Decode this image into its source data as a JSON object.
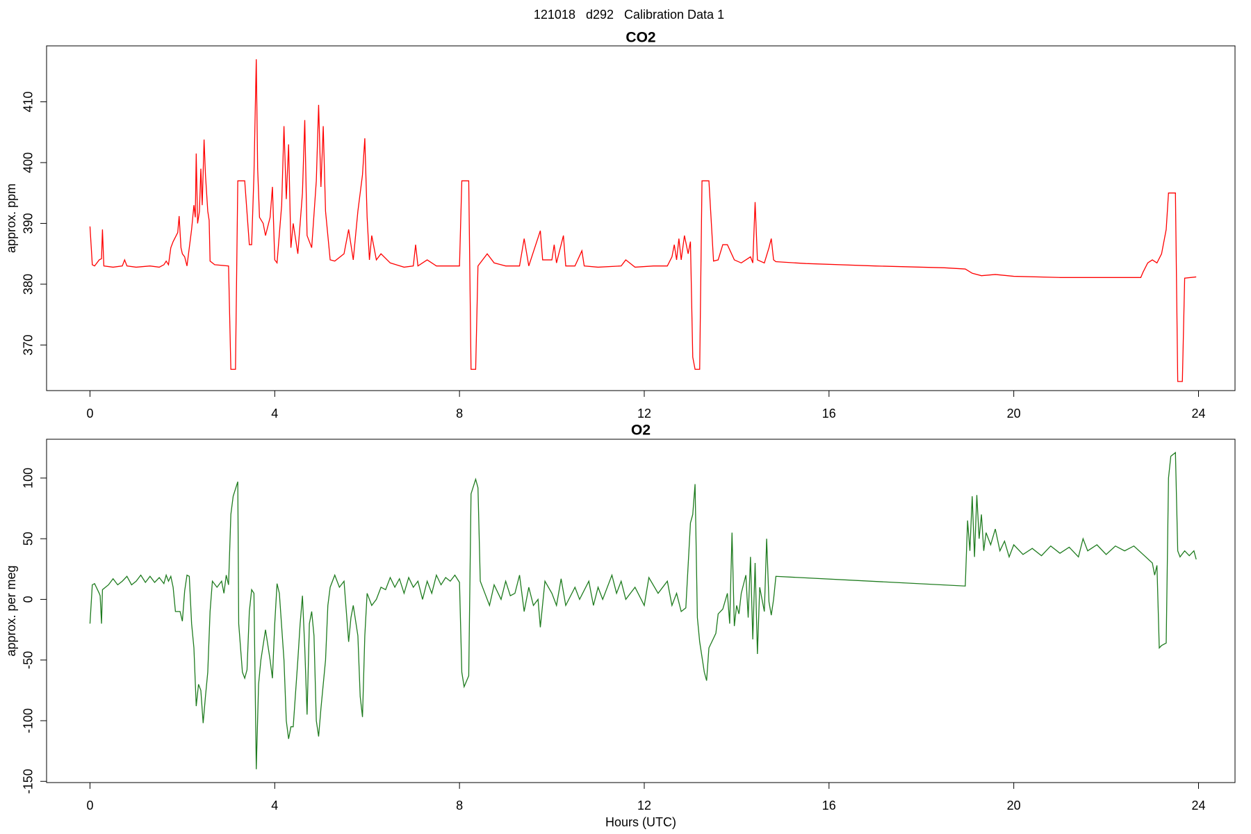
{
  "title": "121018   d292   Calibration Data 1",
  "chart_data": [
    {
      "type": "line",
      "title": "CO2",
      "ylabel": "approx. ppm",
      "color": "#ff0000",
      "xlim": [
        -0.94,
        24.79
      ],
      "ylim": [
        362.5,
        419.2
      ],
      "xticks": [
        0,
        4,
        8,
        12,
        16,
        20,
        24
      ],
      "yticks": [
        370,
        380,
        390,
        400,
        410
      ],
      "x": [
        0.0,
        0.05,
        0.1,
        0.2,
        0.25,
        0.27,
        0.3,
        0.5,
        0.7,
        0.75,
        0.8,
        1.0,
        1.3,
        1.5,
        1.6,
        1.65,
        1.7,
        1.75,
        1.8,
        1.9,
        1.93,
        1.97,
        2.0,
        2.05,
        2.1,
        2.2,
        2.25,
        2.28,
        2.3,
        2.33,
        2.37,
        2.4,
        2.43,
        2.47,
        2.5,
        2.55,
        2.58,
        2.6,
        2.7,
        3.0,
        3.05,
        3.15,
        3.2,
        3.35,
        3.45,
        3.5,
        3.55,
        3.6,
        3.63,
        3.67,
        3.75,
        3.8,
        3.9,
        3.95,
        4.0,
        4.05,
        4.15,
        4.2,
        4.25,
        4.3,
        4.35,
        4.4,
        4.5,
        4.6,
        4.65,
        4.7,
        4.8,
        4.9,
        4.95,
        5.0,
        5.05,
        5.1,
        5.2,
        5.3,
        5.5,
        5.6,
        5.7,
        5.8,
        5.9,
        5.95,
        6.0,
        6.05,
        6.1,
        6.2,
        6.3,
        6.5,
        6.8,
        7.0,
        7.05,
        7.1,
        7.3,
        7.5,
        8.0,
        8.05,
        8.2,
        8.25,
        8.35,
        8.4,
        8.6,
        8.75,
        9.0,
        9.3,
        9.4,
        9.5,
        9.75,
        9.8,
        10.0,
        10.05,
        10.1,
        10.25,
        10.3,
        10.5,
        10.65,
        10.7,
        11.0,
        11.5,
        11.6,
        11.8,
        12.2,
        12.5,
        12.6,
        12.65,
        12.7,
        12.75,
        12.8,
        12.87,
        12.95,
        13.0,
        13.05,
        13.1,
        13.2,
        13.25,
        13.4,
        13.5,
        13.6,
        13.7,
        13.8,
        13.95,
        14.1,
        14.3,
        14.35,
        14.4,
        14.45,
        14.6,
        14.7,
        14.75,
        14.8,
        14.85,
        15.5,
        17,
        18.5,
        18.95,
        19.1,
        19.3,
        19.6,
        20,
        21,
        22.0,
        22.75,
        22.8,
        22.9,
        23.0,
        23.1,
        23.2,
        23.3,
        23.35,
        23.5,
        23.55,
        23.65,
        23.7,
        23.95
      ],
      "values": [
        389.5,
        383.2,
        383,
        384,
        384.2,
        389,
        383,
        382.8,
        383,
        384,
        383,
        382.8,
        383,
        382.8,
        383.2,
        383.8,
        383.2,
        386,
        387,
        388.5,
        391.2,
        386,
        385,
        384.5,
        383,
        389,
        393,
        391,
        401.5,
        390,
        392,
        399,
        393,
        403.8,
        398,
        392,
        390.5,
        383.8,
        383.2,
        383,
        366,
        366,
        397,
        397,
        386.5,
        386.5,
        398,
        417,
        399,
        391,
        390,
        388,
        391,
        396,
        384,
        383.5,
        393,
        406,
        394,
        403,
        386,
        390,
        385,
        395,
        407,
        388,
        386,
        397,
        409.5,
        396,
        406,
        392,
        384,
        383.8,
        385,
        389,
        384,
        392,
        398,
        404,
        391,
        384,
        388,
        384,
        385,
        383.5,
        382.8,
        383,
        386.5,
        383,
        384,
        383,
        383,
        397,
        397,
        366,
        366,
        383,
        385,
        383.5,
        383,
        383,
        387.5,
        383,
        388.8,
        384,
        384,
        386.5,
        383.5,
        388,
        383,
        383,
        385.5,
        383,
        382.8,
        383,
        384,
        382.8,
        383,
        383,
        384.5,
        386.5,
        384,
        387.5,
        384,
        388,
        385,
        387,
        368,
        366,
        366,
        397,
        397,
        383.8,
        384,
        386.5,
        386.5,
        384,
        383.5,
        384.5,
        383.5,
        393.5,
        384,
        383.5,
        386,
        387.5,
        384,
        383.7,
        383.4,
        383,
        382.7,
        382.5,
        381.8,
        381.4,
        381.6,
        381.3,
        381.1,
        381.1,
        381.1,
        382,
        383.5,
        384,
        383.5,
        385,
        389,
        395,
        395,
        364,
        364,
        381,
        381.2
      ]
    },
    {
      "type": "line",
      "title": "O2",
      "ylabel": "approx. per meg",
      "xlabel": "Hours (UTC)",
      "color": "#1e7b1e",
      "xlim": [
        -0.94,
        24.79
      ],
      "ylim": [
        -151,
        132
      ],
      "xticks": [
        0,
        4,
        8,
        12,
        16,
        20,
        24
      ],
      "yticks": [
        -150,
        -100,
        -50,
        0,
        50,
        100
      ],
      "x": [
        0.0,
        0.05,
        0.1,
        0.2,
        0.22,
        0.25,
        0.27,
        0.4,
        0.5,
        0.6,
        0.7,
        0.8,
        0.9,
        1.0,
        1.1,
        1.2,
        1.3,
        1.4,
        1.5,
        1.6,
        1.65,
        1.7,
        1.75,
        1.8,
        1.85,
        1.95,
        2.0,
        2.05,
        2.1,
        2.15,
        2.2,
        2.25,
        2.3,
        2.35,
        2.4,
        2.45,
        2.5,
        2.55,
        2.6,
        2.65,
        2.75,
        2.85,
        2.9,
        2.95,
        3.0,
        3.05,
        3.1,
        3.2,
        3.22,
        3.3,
        3.35,
        3.4,
        3.45,
        3.5,
        3.55,
        3.6,
        3.65,
        3.7,
        3.8,
        3.9,
        3.95,
        4.0,
        4.05,
        4.1,
        4.2,
        4.25,
        4.3,
        4.35,
        4.4,
        4.5,
        4.55,
        4.6,
        4.65,
        4.7,
        4.75,
        4.8,
        4.85,
        4.9,
        4.95,
        5.0,
        5.1,
        5.15,
        5.2,
        5.3,
        5.4,
        5.5,
        5.55,
        5.6,
        5.65,
        5.7,
        5.8,
        5.85,
        5.9,
        5.95,
        6.0,
        6.1,
        6.2,
        6.3,
        6.4,
        6.5,
        6.6,
        6.7,
        6.8,
        6.9,
        7.0,
        7.1,
        7.2,
        7.3,
        7.4,
        7.5,
        7.6,
        7.7,
        7.8,
        7.9,
        8.0,
        8.05,
        8.1,
        8.2,
        8.25,
        8.35,
        8.4,
        8.45,
        8.55,
        8.65,
        8.75,
        8.9,
        9.0,
        9.1,
        9.2,
        9.3,
        9.4,
        9.5,
        9.6,
        9.7,
        9.75,
        9.85,
        10.0,
        10.1,
        10.2,
        10.3,
        10.5,
        10.6,
        10.8,
        10.9,
        11.0,
        11.1,
        11.3,
        11.4,
        11.5,
        11.6,
        11.8,
        12.0,
        12.1,
        12.3,
        12.5,
        12.6,
        12.7,
        12.8,
        12.9,
        13.0,
        13.05,
        13.1,
        13.15,
        13.2,
        13.3,
        13.35,
        13.4,
        13.55,
        13.6,
        13.7,
        13.8,
        13.85,
        13.9,
        13.95,
        14.0,
        14.05,
        14.1,
        14.2,
        14.25,
        14.3,
        14.35,
        14.4,
        14.45,
        14.5,
        14.6,
        14.65,
        14.7,
        14.75,
        14.8,
        14.85,
        18.95,
        19.0,
        19.05,
        19.1,
        19.15,
        19.2,
        19.25,
        19.3,
        19.35,
        19.4,
        19.5,
        19.6,
        19.7,
        19.8,
        19.9,
        20.0,
        20.2,
        20.4,
        20.6,
        20.8,
        21.0,
        21.2,
        21.4,
        21.5,
        21.6,
        21.8,
        22.0,
        22.2,
        22.4,
        22.6,
        22.8,
        23.0,
        23.05,
        23.1,
        23.15,
        23.2,
        23.3,
        23.35,
        23.4,
        23.5,
        23.55,
        23.6,
        23.7,
        23.8,
        23.9,
        23.95
      ],
      "values": [
        -20,
        12,
        13,
        5,
        3,
        -20,
        8,
        12,
        17,
        12,
        15,
        19,
        12,
        15,
        20,
        14,
        19,
        14,
        18,
        13,
        20,
        15,
        19,
        10,
        -10,
        -10,
        -18,
        7,
        20,
        19,
        -20,
        -40,
        -88,
        -70,
        -75,
        -102,
        -80,
        -60,
        -10,
        15,
        10,
        15,
        5,
        20,
        12,
        70,
        85,
        97,
        -20,
        -60,
        -65,
        -58,
        -10,
        8,
        5,
        -140,
        -70,
        -50,
        -25,
        -50,
        -65,
        -20,
        13,
        5,
        -50,
        -100,
        -115,
        -105,
        -105,
        -50,
        -20,
        3,
        -40,
        -95,
        -20,
        -10,
        -30,
        -100,
        -113,
        -90,
        -50,
        -5,
        10,
        20,
        10,
        15,
        -10,
        -35,
        -15,
        -5,
        -30,
        -80,
        -97,
        -30,
        5,
        -5,
        0,
        10,
        8,
        18,
        10,
        17,
        5,
        18,
        10,
        15,
        0,
        15,
        5,
        20,
        12,
        18,
        15,
        20,
        14,
        -60,
        -72,
        -63,
        87,
        99,
        92,
        15,
        5,
        -5,
        12,
        0,
        15,
        3,
        5,
        20,
        -10,
        10,
        -5,
        0,
        -23,
        15,
        5,
        -5,
        17,
        -5,
        10,
        0,
        15,
        -5,
        10,
        0,
        20,
        5,
        15,
        0,
        10,
        -5,
        18,
        5,
        15,
        -5,
        5,
        -10,
        -7,
        63,
        70,
        95,
        -15,
        -35,
        -60,
        -67,
        -40,
        -28,
        -12,
        -8,
        5,
        -20,
        55,
        -22,
        -5,
        -12,
        5,
        20,
        -15,
        35,
        -33,
        30,
        -45,
        10,
        -10,
        50,
        -2,
        -13,
        0,
        19,
        11,
        65,
        40,
        85,
        35,
        86,
        50,
        70,
        40,
        55,
        45,
        58,
        40,
        48,
        35,
        45,
        37,
        42,
        36,
        44,
        38,
        43,
        35,
        50,
        40,
        45,
        37,
        44,
        40,
        44,
        37,
        30,
        20,
        28,
        -40,
        -38,
        -36,
        100,
        118,
        121,
        40,
        35,
        40,
        36,
        40,
        33
      ]
    }
  ]
}
